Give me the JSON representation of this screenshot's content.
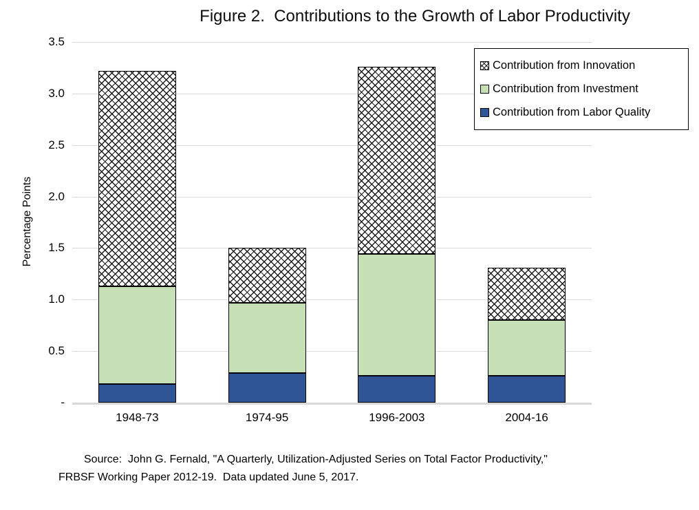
{
  "figure": {
    "title": "Figure 2.  Contributions to the Growth of Labor Productivity",
    "y_axis_label": "Percentage Points",
    "y_tick_labels": [
      "3.5",
      "3.0",
      "2.5",
      "2.0",
      "1.5",
      "1.0",
      "0.5",
      "-"
    ],
    "source_line1": "Source:  John G. Fernald, \"A Quarterly, Utilization-Adjusted Series on Total Factor Productivity,\"",
    "source_line2": "FRBSF Working Paper 2012-19.  Data updated June 5, 2017."
  },
  "chart_data": {
    "type": "bar",
    "stacked": true,
    "title": "Figure 2.  Contributions to the Growth of Labor Productivity",
    "xlabel": "",
    "ylabel": "Percentage Points",
    "ylim": [
      0,
      3.5
    ],
    "ytick_step": 0.5,
    "grid": "horizontal",
    "legend_position": "top-right",
    "categories": [
      "1948-73",
      "1974-95",
      "1996-2003",
      "2004-16"
    ],
    "series": [
      {
        "name": "Contribution from Labor Quality",
        "fill": "solid",
        "color": "#2f5597",
        "values": [
          0.18,
          0.29,
          0.26,
          0.26
        ]
      },
      {
        "name": "Contribution from Investment",
        "fill": "solid",
        "color": "#c6dfb5",
        "values": [
          0.95,
          0.68,
          1.18,
          0.54
        ]
      },
      {
        "name": "Contribution from Innovation",
        "fill": "crosshatch",
        "color": "#1a1a1a",
        "values": [
          2.09,
          0.53,
          1.82,
          0.51
        ]
      }
    ],
    "stack_totals": [
      3.22,
      1.5,
      3.26,
      1.31
    ]
  },
  "legend": {
    "items": [
      {
        "label": "Contribution from Innovation",
        "series_index": 2
      },
      {
        "label": "Contribution from Investment",
        "series_index": 1
      },
      {
        "label": "Contribution from Labor Quality",
        "series_index": 0
      }
    ]
  },
  "colors": {
    "labor_quality_blue": "#2f5597",
    "investment_green": "#c6dfb5",
    "innovation_hatch": "#1a1a1a",
    "gridline": "#d9d9d9",
    "axis_line": "#d9d9d9",
    "bar_border": "#000000",
    "text": "#000000",
    "background": "#ffffff"
  }
}
